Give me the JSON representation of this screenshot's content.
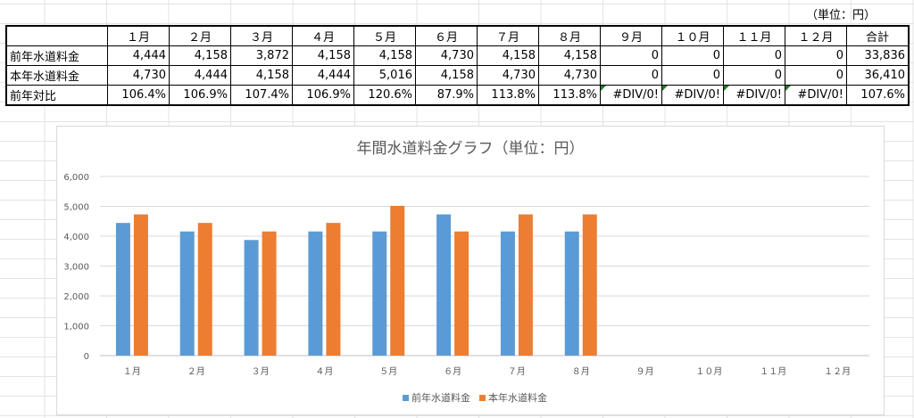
{
  "sheet": {
    "unit_label": "（単位：円）",
    "headers": [
      "",
      "１月",
      "２月",
      "３月",
      "４月",
      "５月",
      "６月",
      "７月",
      "８月",
      "９月",
      "１０月",
      "１１月",
      "１２月",
      "合計"
    ],
    "rows": [
      {
        "label": "前年水道料金",
        "cells": [
          "4,444",
          "4,158",
          "3,872",
          "4,158",
          "4,158",
          "4,730",
          "4,158",
          "4,158",
          "0",
          "0",
          "0",
          "0",
          "33,836"
        ]
      },
      {
        "label": "本年水道料金",
        "cells": [
          "4,730",
          "4,444",
          "4,158",
          "4,444",
          "5,016",
          "4,158",
          "4,730",
          "4,730",
          "0",
          "0",
          "0",
          "0",
          "36,410"
        ]
      },
      {
        "label": "前年対比",
        "cells": [
          "106.4%",
          "106.9%",
          "107.4%",
          "106.9%",
          "120.6%",
          "87.9%",
          "113.8%",
          "113.8%",
          "#DIV/0!",
          "#DIV/0!",
          "#DIV/0!",
          "#DIV/0!",
          "107.6%"
        ]
      }
    ]
  },
  "chart_data": {
    "type": "bar",
    "title": "年間水道料金グラフ（単位：円）",
    "categories": [
      "１月",
      "２月",
      "３月",
      "４月",
      "５月",
      "６月",
      "７月",
      "８月",
      "９月",
      "１０月",
      "１１月",
      "１２月"
    ],
    "series": [
      {
        "name": "前年水道料金",
        "color": "#5b9bd5",
        "values": [
          4444,
          4158,
          3872,
          4158,
          4158,
          4730,
          4158,
          4158,
          0,
          0,
          0,
          0
        ]
      },
      {
        "name": "本年水道料金",
        "color": "#ed7d31",
        "values": [
          4730,
          4444,
          4158,
          4444,
          5016,
          4158,
          4730,
          4730,
          0,
          0,
          0,
          0
        ]
      }
    ],
    "ylim": [
      0,
      6000
    ],
    "yticks": [
      "0",
      "1,000",
      "2,000",
      "3,000",
      "4,000",
      "5,000",
      "6,000"
    ],
    "grid": true,
    "legend": "bottom"
  }
}
